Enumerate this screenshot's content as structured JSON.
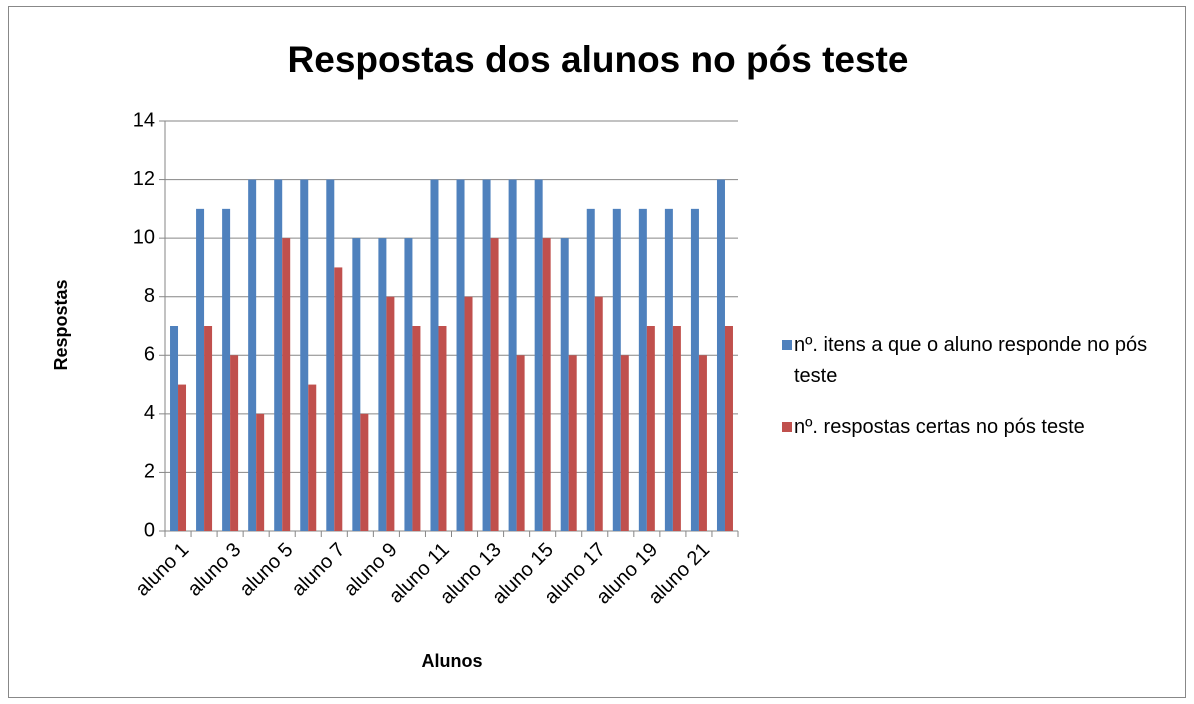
{
  "chart_data": {
    "type": "bar",
    "title": "Respostas dos alunos no pós teste",
    "x_label": "Alunos",
    "y_label": "Respostas",
    "categories": [
      "aluno 1",
      null,
      "aluno 3",
      null,
      "aluno 5",
      null,
      "aluno 7",
      null,
      "aluno 9",
      null,
      "aluno 11",
      null,
      "aluno 13",
      null,
      "aluno 15",
      null,
      "aluno 17",
      null,
      "aluno 19",
      null,
      "aluno 21",
      null
    ],
    "series": [
      {
        "name": "nº. itens a que o aluno responde no pós teste",
        "color": "#4f81bd",
        "values": [
          7,
          11,
          11,
          12,
          12,
          12,
          12,
          10,
          10,
          10,
          12,
          12,
          12,
          12,
          12,
          10,
          11,
          11,
          11,
          11,
          11,
          12
        ]
      },
      {
        "name": "nº. respostas certas no pós teste",
        "color": "#c0504d",
        "values": [
          5,
          7,
          6,
          4,
          10,
          5,
          9,
          4,
          8,
          7,
          7,
          8,
          10,
          6,
          10,
          6,
          8,
          6,
          7,
          7,
          6,
          7
        ]
      }
    ],
    "ylim": [
      0,
      14
    ],
    "yticks": [
      0,
      2,
      4,
      6,
      8,
      10,
      12,
      14
    ],
    "grid": true,
    "legend": "right"
  }
}
